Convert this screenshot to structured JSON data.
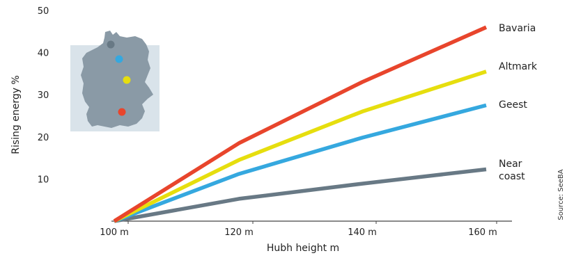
{
  "chart_data": {
    "type": "line",
    "title": "",
    "xlabel": "Hubh height m",
    "ylabel": "Rising energy %",
    "x": [
      100,
      120,
      140,
      160
    ],
    "x_tick_labels": [
      "100 m",
      "120 m",
      "140 m",
      "160 m"
    ],
    "y_ticks": [
      10,
      20,
      30,
      40,
      50
    ],
    "ylim": [
      0,
      50
    ],
    "grid": false,
    "series": [
      {
        "name": "Bavaria",
        "color": "#e8452c",
        "values": [
          0,
          18.5,
          33,
          46
        ]
      },
      {
        "name": "Altmark",
        "color": "#e6de0e",
        "values": [
          0,
          14.5,
          26,
          35.5
        ]
      },
      {
        "name": "Geest",
        "color": "#35a8df",
        "values": [
          0,
          11.2,
          19.8,
          27.5
        ]
      },
      {
        "name": "Near\ncoast",
        "color": "#687985",
        "values": [
          0,
          5.3,
          8.9,
          12.3
        ]
      }
    ],
    "source": "Source: SeeBA",
    "inset_map": {
      "subject": "map of Germany",
      "markers": [
        {
          "series": "Near\ncoast",
          "color": "#687985"
        },
        {
          "series": "Geest",
          "color": "#35a8df"
        },
        {
          "series": "Altmark",
          "color": "#e6de0e"
        },
        {
          "series": "Bavaria",
          "color": "#e8452c"
        }
      ]
    }
  }
}
